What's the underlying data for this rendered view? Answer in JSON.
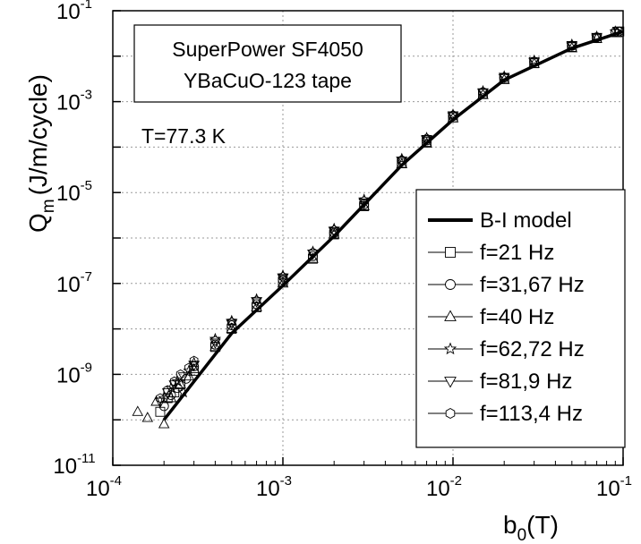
{
  "chart_data": {
    "type": "scatter",
    "title": "",
    "xlabel": "b",
    "xlabel_sub": "0",
    "xlabel_unit": "(T)",
    "ylabel": "Q",
    "ylabel_sub": "m",
    "ylabel_unit": "(J/m/cycle)",
    "xscale": "log",
    "yscale": "log",
    "xlim": [
      0.0001,
      0.1
    ],
    "ylim": [
      1e-11,
      0.1
    ],
    "grid": true,
    "x_ticks": [
      {
        "base": "10",
        "exp": "-4"
      },
      {
        "base": "10",
        "exp": "-3"
      },
      {
        "base": "10",
        "exp": "-2"
      },
      {
        "base": "10",
        "exp": "-1"
      }
    ],
    "y_ticks": [
      {
        "base": "10",
        "exp": "-11"
      },
      {
        "base": "10",
        "exp": "-9"
      },
      {
        "base": "10",
        "exp": "-7"
      },
      {
        "base": "10",
        "exp": "-5"
      },
      {
        "base": "10",
        "exp": "-3"
      },
      {
        "base": "10",
        "exp": "-1"
      }
    ],
    "annotations": [
      "SuperPower SF4050",
      "YBaCuO-123 tape",
      "T=77.3 K"
    ],
    "legend_position": "lower-right",
    "series": [
      {
        "name": "B-I model",
        "style": "line",
        "marker": "none",
        "x": [
          0.0002,
          0.0005,
          0.001,
          0.002,
          0.005,
          0.01,
          0.02,
          0.05,
          0.1
        ],
        "y": [
          1e-10,
          8e-09,
          9e-08,
          1.1e-06,
          4e-05,
          0.0004,
          0.003,
          0.015,
          0.035
        ]
      },
      {
        "name": "f=21 Hz",
        "style": "markers",
        "marker": "square",
        "x": [
          0.00019,
          0.00021,
          0.00023,
          0.00025,
          0.0003,
          0.0004,
          0.0005,
          0.0007,
          0.001,
          0.0015,
          0.002,
          0.003,
          0.005,
          0.007,
          0.01,
          0.015,
          0.02,
          0.03,
          0.05,
          0.07,
          0.095
        ],
        "y": [
          1.5e-10,
          3e-10,
          4e-10,
          6e-10,
          1.2e-09,
          4e-09,
          1e-08,
          3e-08,
          1.1e-07,
          3.5e-07,
          1.2e-06,
          5e-06,
          4.5e-05,
          0.00013,
          0.00045,
          0.0015,
          0.0032,
          0.007,
          0.016,
          0.025,
          0.035
        ]
      },
      {
        "name": "f=31,67 Hz",
        "style": "markers",
        "marker": "circle",
        "x": [
          0.0002,
          0.00022,
          0.00024,
          0.00027,
          0.0003,
          0.0004,
          0.0005,
          0.0007,
          0.001,
          0.0015,
          0.002,
          0.003,
          0.005,
          0.007,
          0.01,
          0.015,
          0.02,
          0.03,
          0.05,
          0.07,
          0.09
        ],
        "y": [
          2e-10,
          3.5e-10,
          5e-10,
          8e-10,
          1.5e-09,
          4.5e-09,
          1.2e-08,
          3.5e-08,
          1.2e-07,
          4e-07,
          1.3e-06,
          5.5e-06,
          5e-05,
          0.00014,
          0.00048,
          0.0016,
          0.0034,
          0.0075,
          0.017,
          0.026,
          0.034
        ]
      },
      {
        "name": "f=40 Hz",
        "style": "markers",
        "marker": "triangle-up",
        "x": [
          0.00014,
          0.00016,
          0.00018,
          0.0002,
          0.00022,
          0.00025,
          0.00028,
          0.0003,
          0.0004,
          0.0005,
          0.0007,
          0.001,
          0.0015,
          0.002,
          0.003,
          0.005,
          0.007,
          0.01,
          0.015,
          0.02,
          0.03,
          0.05,
          0.07,
          0.092
        ],
        "y": [
          1.5e-10,
          1.1e-10,
          2.5e-10,
          8e-11,
          3e-10,
          6e-10,
          9e-10,
          1.3e-09,
          4e-09,
          1e-08,
          3e-08,
          1e-07,
          3.5e-07,
          1.2e-06,
          5e-06,
          4.2e-05,
          0.00012,
          0.00043,
          0.0014,
          0.003,
          0.0068,
          0.015,
          0.024,
          0.032
        ]
      },
      {
        "name": "f=62,72 Hz",
        "style": "markers",
        "marker": "star",
        "x": [
          0.0002,
          0.00022,
          0.00024,
          0.00026,
          0.00028,
          0.0003,
          0.0004,
          0.0005,
          0.0007,
          0.001,
          0.0015,
          0.002,
          0.003,
          0.005,
          0.007,
          0.01,
          0.015,
          0.02,
          0.03,
          0.05,
          0.07,
          0.09
        ],
        "y": [
          3e-10,
          5e-10,
          7e-10,
          4e-10,
          1.2e-09,
          1.8e-09,
          6e-09,
          1.5e-08,
          4.5e-08,
          1.5e-07,
          5e-07,
          1.6e-06,
          7e-06,
          5.5e-05,
          0.00016,
          0.00052,
          0.0017,
          0.0036,
          0.008,
          0.018,
          0.027,
          0.035
        ]
      },
      {
        "name": "f=81,9 Hz",
        "style": "markers",
        "marker": "triangle-down",
        "x": [
          0.00019,
          0.00021,
          0.00023,
          0.00026,
          0.0003,
          0.0004,
          0.0005,
          0.0007,
          0.001,
          0.0015,
          0.002,
          0.003,
          0.005,
          0.007,
          0.01,
          0.015,
          0.02,
          0.03,
          0.05,
          0.07,
          0.093
        ],
        "y": [
          2.5e-10,
          4e-10,
          6e-10,
          9e-10,
          1.6e-09,
          5e-09,
          1.3e-08,
          4e-08,
          1.3e-07,
          4.5e-07,
          1.4e-06,
          6e-06,
          5e-05,
          0.00015,
          0.0005,
          0.0016,
          0.0035,
          0.0078,
          0.0175,
          0.0265,
          0.036
        ]
      },
      {
        "name": "f=113,4 Hz",
        "style": "markers",
        "marker": "hexagon",
        "x": [
          0.00019,
          0.00021,
          0.00023,
          0.00025,
          0.00028,
          0.0003,
          0.0004,
          0.0005,
          0.0007,
          0.001,
          0.0015,
          0.002,
          0.003,
          0.005,
          0.007,
          0.01,
          0.015,
          0.02,
          0.03,
          0.05,
          0.07,
          0.095
        ],
        "y": [
          3e-10,
          4.5e-10,
          7e-10,
          1e-09,
          1.4e-09,
          2e-09,
          5.5e-09,
          1.4e-08,
          4.2e-08,
          1.4e-07,
          4.8e-07,
          1.5e-06,
          6.5e-06,
          5.2e-05,
          0.000155,
          0.00051,
          0.00165,
          0.0035,
          0.0077,
          0.0172,
          0.026,
          0.035
        ]
      }
    ]
  }
}
